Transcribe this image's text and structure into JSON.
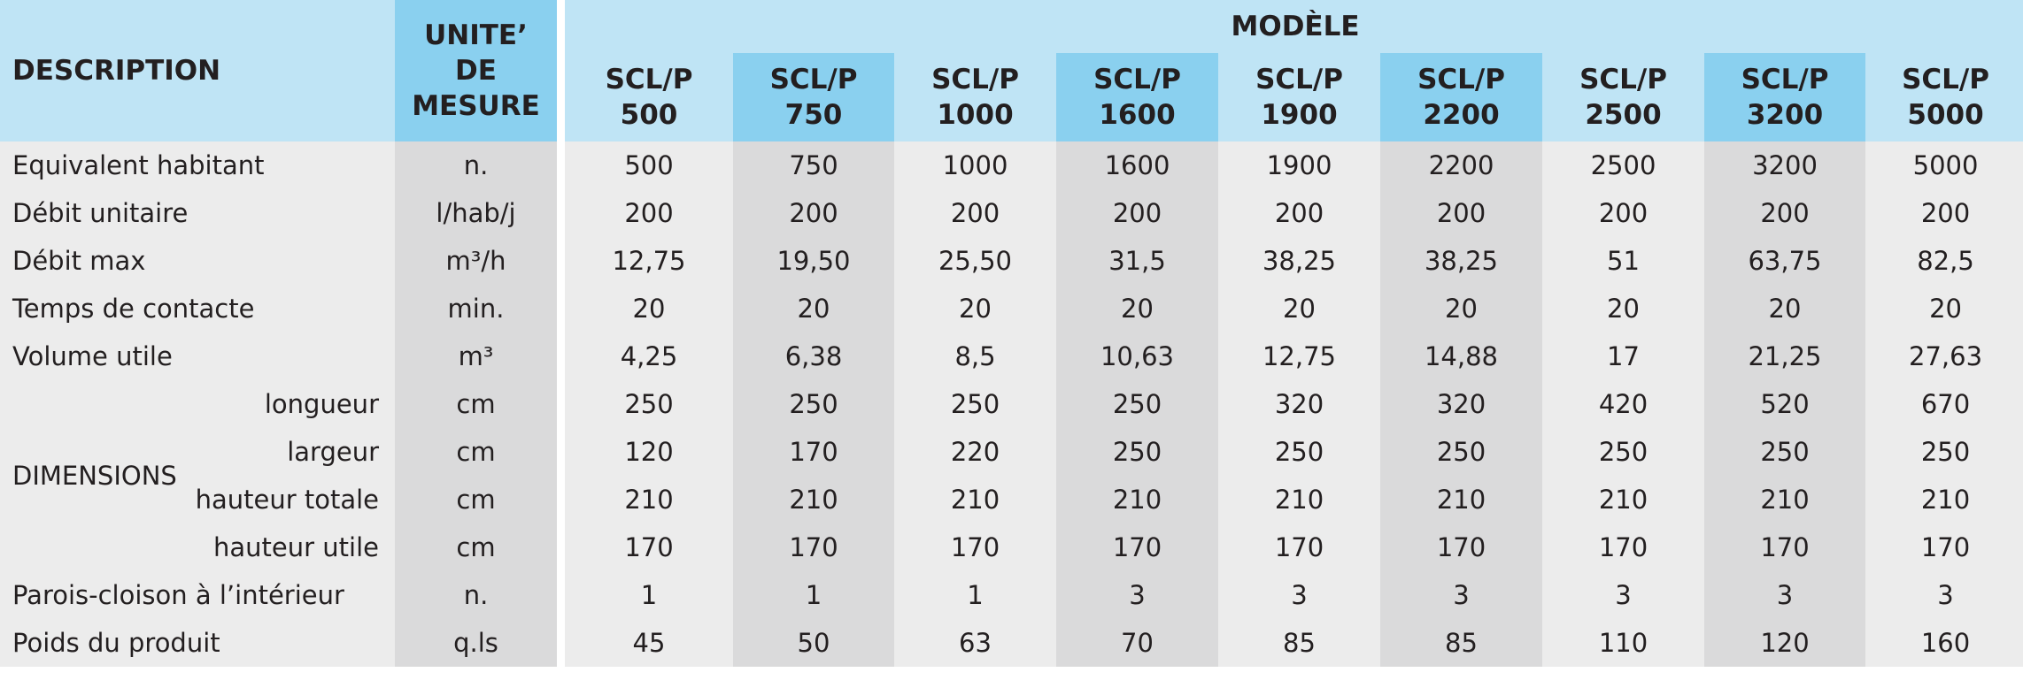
{
  "header": {
    "description": "DESCRIPTION",
    "unit": [
      "UNITE’",
      "DE",
      "MESURE"
    ],
    "model_group": "MODÈLE",
    "models": [
      [
        "SCL/P",
        "500"
      ],
      [
        "SCL/P",
        "750"
      ],
      [
        "SCL/P",
        "1000"
      ],
      [
        "SCL/P",
        "1600"
      ],
      [
        "SCL/P",
        "1900"
      ],
      [
        "SCL/P",
        "2200"
      ],
      [
        "SCL/P",
        "2500"
      ],
      [
        "SCL/P",
        "3200"
      ],
      [
        "SCL/P",
        "5000"
      ]
    ]
  },
  "dimensions_label": "DIMENSIONS",
  "rows": [
    {
      "label": "Equivalent habitant",
      "unit": "n.",
      "values": [
        "500",
        "750",
        "1000",
        "1600",
        "1900",
        "2200",
        "2500",
        "3200",
        "5000"
      ]
    },
    {
      "label": "Débit unitaire",
      "unit": "l/hab/j",
      "values": [
        "200",
        "200",
        "200",
        "200",
        "200",
        "200",
        "200",
        "200",
        "200"
      ]
    },
    {
      "label": "Débit max",
      "unit": "m³/h",
      "values": [
        "12,75",
        "19,50",
        "25,50",
        "31,5",
        "38,25",
        "38,25",
        "51",
        "63,75",
        "82,5"
      ]
    },
    {
      "label": "Temps de contacte",
      "unit": "min.",
      "values": [
        "20",
        "20",
        "20",
        "20",
        "20",
        "20",
        "20",
        "20",
        "20"
      ]
    },
    {
      "label": "Volume utile",
      "unit": "m³",
      "values": [
        "4,25",
        "6,38",
        "8,5",
        "10,63",
        "12,75",
        "14,88",
        "17",
        "21,25",
        "27,63"
      ]
    },
    {
      "label": "longueur",
      "unit": "cm",
      "values": [
        "250",
        "250",
        "250",
        "250",
        "320",
        "320",
        "420",
        "520",
        "670"
      ]
    },
    {
      "label": "largeur",
      "unit": "cm",
      "values": [
        "120",
        "170",
        "220",
        "250",
        "250",
        "250",
        "250",
        "250",
        "250"
      ]
    },
    {
      "label": "hauteur totale",
      "unit": "cm",
      "values": [
        "210",
        "210",
        "210",
        "210",
        "210",
        "210",
        "210",
        "210",
        "210"
      ]
    },
    {
      "label": "hauteur utile",
      "unit": "cm",
      "values": [
        "170",
        "170",
        "170",
        "170",
        "170",
        "170",
        "170",
        "170",
        "170"
      ]
    },
    {
      "label": "Parois-cloison à l’intérieur",
      "unit": "n.",
      "values": [
        "1",
        "1",
        "1",
        "3",
        "3",
        "3",
        "3",
        "3",
        "3"
      ]
    },
    {
      "label": "Poids du produit",
      "unit": "q.ls",
      "values": [
        "45",
        "50",
        "63",
        "70",
        "85",
        "85",
        "110",
        "120",
        "160"
      ]
    }
  ],
  "colors": {
    "header_light": "#bfe4f5",
    "header_dark": "#8ad0ef",
    "cell_light": "#ececec",
    "cell_dark": "#dadadb",
    "text": "#231f20"
  }
}
